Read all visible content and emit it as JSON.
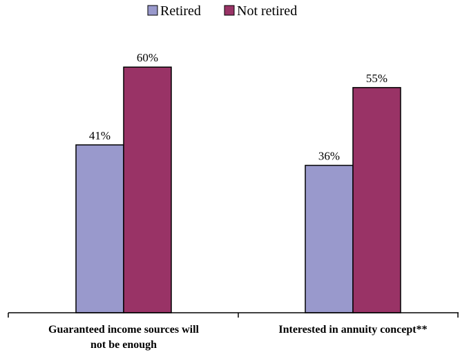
{
  "chart_data": {
    "type": "bar",
    "categories": [
      [
        "Guaranteed income sources will",
        "not be enough"
      ],
      [
        "Interested in annuity concept**"
      ]
    ],
    "series": [
      {
        "name": "Retired",
        "values": [
          41,
          36
        ],
        "labels": [
          "41%",
          "36%"
        ],
        "color": "#9999CC"
      },
      {
        "name": "Not retired",
        "values": [
          60,
          55
        ],
        "labels": [
          "60%",
          "55%"
        ],
        "color": "#993366"
      }
    ],
    "ylim": [
      0,
      100
    ],
    "grid": false,
    "legend": "top-center"
  }
}
